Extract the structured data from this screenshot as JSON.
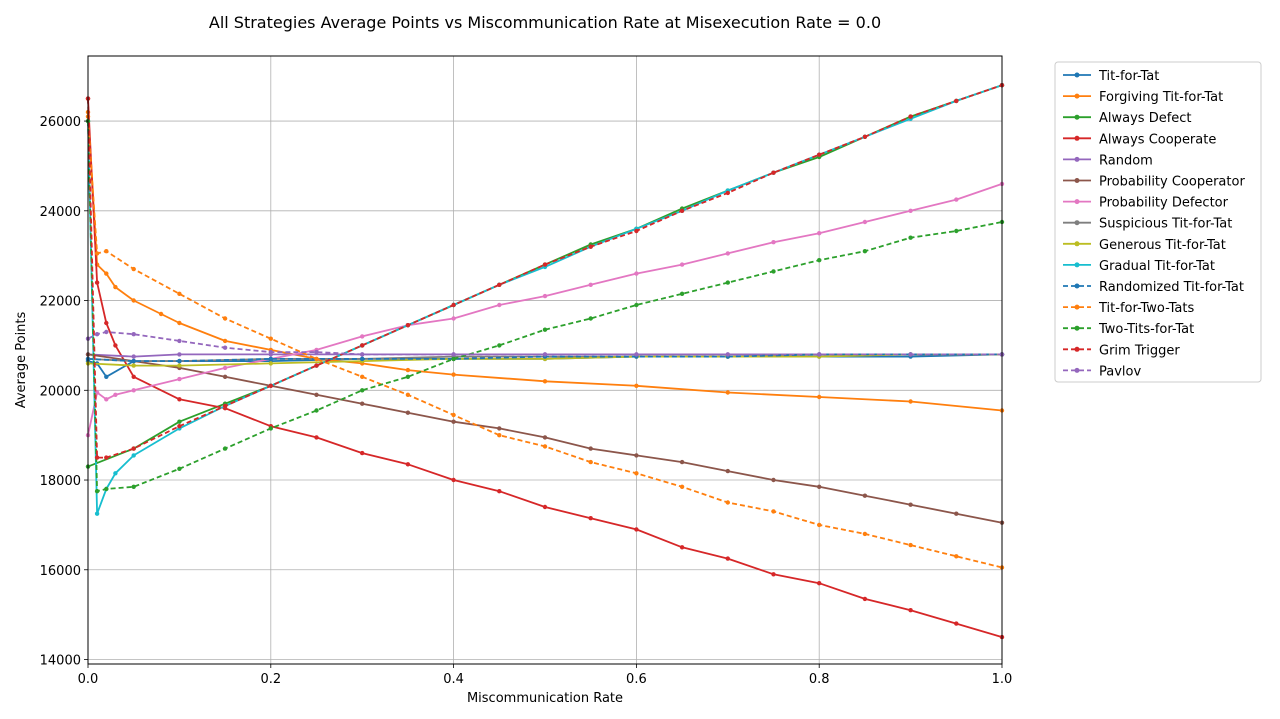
{
  "chart_data": {
    "type": "line",
    "title": "All Strategies Average Points vs Miscommunication Rate at Misexecution Rate = 0.0",
    "xlabel": "Miscommunication Rate",
    "ylabel": "Average Points",
    "xlim": [
      0,
      1
    ],
    "ylim": [
      13900,
      27450
    ],
    "x_ticks": [
      0,
      0.2,
      0.4,
      0.6,
      0.8,
      1.0
    ],
    "x_tick_labels": [
      "0.0",
      "0.2",
      "0.4",
      "0.6",
      "0.8",
      "1.0"
    ],
    "y_ticks": [
      14000,
      16000,
      18000,
      20000,
      22000,
      24000,
      26000
    ],
    "y_tick_labels": [
      "14000",
      "16000",
      "18000",
      "20000",
      "22000",
      "24000",
      "26000"
    ],
    "grid": true,
    "legend_position": "outside-right",
    "series": [
      {
        "name": "Tit-for-Tat",
        "color": "#1f77b4",
        "dashed": false,
        "points": [
          [
            0,
            20650
          ],
          [
            0.01,
            20600
          ],
          [
            0.02,
            20300
          ],
          [
            0.05,
            20650
          ],
          [
            0.1,
            20650
          ],
          [
            0.2,
            20650
          ],
          [
            0.3,
            20700
          ],
          [
            0.4,
            20700
          ],
          [
            0.5,
            20700
          ],
          [
            0.6,
            20750
          ],
          [
            0.7,
            20750
          ],
          [
            0.8,
            20750
          ],
          [
            0.9,
            20750
          ],
          [
            1.0,
            20800
          ]
        ]
      },
      {
        "name": "Forgiving Tit-for-Tat",
        "color": "#ff7f0e",
        "dashed": false,
        "points": [
          [
            0,
            26200
          ],
          [
            0.01,
            22800
          ],
          [
            0.02,
            22600
          ],
          [
            0.03,
            22300
          ],
          [
            0.05,
            22000
          ],
          [
            0.08,
            21700
          ],
          [
            0.1,
            21500
          ],
          [
            0.15,
            21100
          ],
          [
            0.2,
            20900
          ],
          [
            0.25,
            20700
          ],
          [
            0.3,
            20600
          ],
          [
            0.35,
            20450
          ],
          [
            0.4,
            20350
          ],
          [
            0.5,
            20200
          ],
          [
            0.6,
            20100
          ],
          [
            0.7,
            19950
          ],
          [
            0.8,
            19850
          ],
          [
            0.9,
            19750
          ],
          [
            1.0,
            19550
          ]
        ]
      },
      {
        "name": "Always Defect",
        "color": "#2ca02c",
        "dashed": false,
        "points": [
          [
            0,
            18300
          ],
          [
            0.05,
            18700
          ],
          [
            0.1,
            19300
          ],
          [
            0.15,
            19700
          ],
          [
            0.2,
            20100
          ],
          [
            0.25,
            20550
          ],
          [
            0.3,
            21000
          ],
          [
            0.35,
            21450
          ],
          [
            0.4,
            21900
          ],
          [
            0.45,
            22350
          ],
          [
            0.5,
            22800
          ],
          [
            0.55,
            23250
          ],
          [
            0.6,
            23600
          ],
          [
            0.65,
            24050
          ],
          [
            0.7,
            24450
          ],
          [
            0.75,
            24850
          ],
          [
            0.8,
            25200
          ],
          [
            0.85,
            25650
          ],
          [
            0.9,
            26100
          ],
          [
            0.95,
            26450
          ],
          [
            1.0,
            26800
          ]
        ]
      },
      {
        "name": "Always Cooperate",
        "color": "#d62728",
        "dashed": false,
        "points": [
          [
            0,
            26500
          ],
          [
            0.01,
            22400
          ],
          [
            0.02,
            21500
          ],
          [
            0.03,
            21000
          ],
          [
            0.05,
            20300
          ],
          [
            0.1,
            19800
          ],
          [
            0.15,
            19600
          ],
          [
            0.2,
            19200
          ],
          [
            0.25,
            18950
          ],
          [
            0.3,
            18600
          ],
          [
            0.35,
            18350
          ],
          [
            0.4,
            18000
          ],
          [
            0.45,
            17750
          ],
          [
            0.5,
            17400
          ],
          [
            0.55,
            17150
          ],
          [
            0.6,
            16900
          ],
          [
            0.65,
            16500
          ],
          [
            0.7,
            16250
          ],
          [
            0.75,
            15900
          ],
          [
            0.8,
            15700
          ],
          [
            0.85,
            15350
          ],
          [
            0.9,
            15100
          ],
          [
            0.95,
            14800
          ],
          [
            1.0,
            14500
          ]
        ]
      },
      {
        "name": "Random",
        "color": "#9467bd",
        "dashed": false,
        "points": [
          [
            0,
            20800
          ],
          [
            0.05,
            20750
          ],
          [
            0.1,
            20800
          ],
          [
            0.2,
            20800
          ],
          [
            0.3,
            20800
          ],
          [
            0.4,
            20800
          ],
          [
            0.5,
            20800
          ],
          [
            0.6,
            20800
          ],
          [
            0.7,
            20800
          ],
          [
            0.8,
            20800
          ],
          [
            0.9,
            20800
          ],
          [
            1.0,
            20800
          ]
        ]
      },
      {
        "name": "Probability Cooperator",
        "color": "#8c564b",
        "dashed": false,
        "points": [
          [
            0,
            20800
          ],
          [
            0.05,
            20650
          ],
          [
            0.1,
            20500
          ],
          [
            0.15,
            20300
          ],
          [
            0.2,
            20100
          ],
          [
            0.25,
            19900
          ],
          [
            0.3,
            19700
          ],
          [
            0.35,
            19500
          ],
          [
            0.4,
            19300
          ],
          [
            0.45,
            19150
          ],
          [
            0.5,
            18950
          ],
          [
            0.55,
            18700
          ],
          [
            0.6,
            18550
          ],
          [
            0.65,
            18400
          ],
          [
            0.7,
            18200
          ],
          [
            0.75,
            18000
          ],
          [
            0.8,
            17850
          ],
          [
            0.85,
            17650
          ],
          [
            0.9,
            17450
          ],
          [
            0.95,
            17250
          ],
          [
            1.0,
            17050
          ]
        ]
      },
      {
        "name": "Probability Defector",
        "color": "#e377c2",
        "dashed": false,
        "points": [
          [
            0,
            19000
          ],
          [
            0.01,
            19950
          ],
          [
            0.02,
            19800
          ],
          [
            0.03,
            19900
          ],
          [
            0.05,
            20000
          ],
          [
            0.1,
            20250
          ],
          [
            0.15,
            20500
          ],
          [
            0.2,
            20700
          ],
          [
            0.25,
            20900
          ],
          [
            0.3,
            21200
          ],
          [
            0.35,
            21450
          ],
          [
            0.4,
            21600
          ],
          [
            0.45,
            21900
          ],
          [
            0.5,
            22100
          ],
          [
            0.55,
            22350
          ],
          [
            0.6,
            22600
          ],
          [
            0.65,
            22800
          ],
          [
            0.7,
            23050
          ],
          [
            0.75,
            23300
          ],
          [
            0.8,
            23500
          ],
          [
            0.85,
            23750
          ],
          [
            0.9,
            24000
          ],
          [
            0.95,
            24250
          ],
          [
            1.0,
            24600
          ]
        ]
      },
      {
        "name": "Suspicious Tit-for-Tat",
        "color": "#7f7f7f",
        "dashed": false,
        "points": [
          [
            0,
            20700
          ],
          [
            0.05,
            20650
          ],
          [
            0.1,
            20650
          ],
          [
            0.2,
            20700
          ],
          [
            0.3,
            20700
          ],
          [
            0.4,
            20750
          ],
          [
            0.5,
            20750
          ],
          [
            0.6,
            20750
          ],
          [
            0.7,
            20750
          ],
          [
            0.8,
            20800
          ],
          [
            0.9,
            20800
          ],
          [
            1.0,
            20800
          ]
        ]
      },
      {
        "name": "Generous Tit-for-Tat",
        "color": "#bcbd22",
        "dashed": false,
        "points": [
          [
            0,
            20600
          ],
          [
            0.05,
            20550
          ],
          [
            0.1,
            20550
          ],
          [
            0.2,
            20600
          ],
          [
            0.3,
            20650
          ],
          [
            0.4,
            20700
          ],
          [
            0.5,
            20700
          ],
          [
            0.6,
            20750
          ],
          [
            0.7,
            20750
          ],
          [
            0.8,
            20750
          ],
          [
            0.9,
            20800
          ],
          [
            1.0,
            20800
          ]
        ]
      },
      {
        "name": "Gradual Tit-for-Tat",
        "color": "#17becf",
        "dashed": false,
        "points": [
          [
            0,
            26000
          ],
          [
            0.01,
            17250
          ],
          [
            0.02,
            17800
          ],
          [
            0.03,
            18150
          ],
          [
            0.05,
            18550
          ],
          [
            0.1,
            19150
          ],
          [
            0.15,
            19650
          ],
          [
            0.2,
            20100
          ],
          [
            0.25,
            20550
          ],
          [
            0.3,
            21000
          ],
          [
            0.35,
            21450
          ],
          [
            0.4,
            21900
          ],
          [
            0.45,
            22350
          ],
          [
            0.5,
            22750
          ],
          [
            0.55,
            23200
          ],
          [
            0.6,
            23600
          ],
          [
            0.65,
            24000
          ],
          [
            0.7,
            24450
          ],
          [
            0.75,
            24850
          ],
          [
            0.8,
            25250
          ],
          [
            0.85,
            25650
          ],
          [
            0.9,
            26050
          ],
          [
            0.95,
            26450
          ],
          [
            1.0,
            26800
          ]
        ]
      },
      {
        "name": "Randomized Tit-for-Tat",
        "color": "#1f77b4",
        "dashed": true,
        "points": [
          [
            0,
            20700
          ],
          [
            0.05,
            20650
          ],
          [
            0.1,
            20650
          ],
          [
            0.2,
            20700
          ],
          [
            0.3,
            20700
          ],
          [
            0.4,
            20700
          ],
          [
            0.5,
            20750
          ],
          [
            0.6,
            20750
          ],
          [
            0.7,
            20750
          ],
          [
            0.8,
            20800
          ],
          [
            0.9,
            20800
          ],
          [
            1.0,
            20800
          ]
        ]
      },
      {
        "name": "Tit-for-Two-Tats",
        "color": "#ff7f0e",
        "dashed": true,
        "points": [
          [
            0,
            26100
          ],
          [
            0.01,
            23050
          ],
          [
            0.02,
            23100
          ],
          [
            0.05,
            22700
          ],
          [
            0.1,
            22150
          ],
          [
            0.15,
            21600
          ],
          [
            0.2,
            21150
          ],
          [
            0.25,
            20700
          ],
          [
            0.3,
            20300
          ],
          [
            0.35,
            19900
          ],
          [
            0.4,
            19450
          ],
          [
            0.45,
            19000
          ],
          [
            0.5,
            18750
          ],
          [
            0.55,
            18400
          ],
          [
            0.6,
            18150
          ],
          [
            0.65,
            17850
          ],
          [
            0.7,
            17500
          ],
          [
            0.75,
            17300
          ],
          [
            0.8,
            17000
          ],
          [
            0.85,
            16800
          ],
          [
            0.9,
            16550
          ],
          [
            0.95,
            16300
          ],
          [
            1.0,
            16050
          ]
        ]
      },
      {
        "name": "Two-Tits-for-Tat",
        "color": "#2ca02c",
        "dashed": true,
        "points": [
          [
            0,
            26000
          ],
          [
            0.01,
            17750
          ],
          [
            0.02,
            17800
          ],
          [
            0.05,
            17850
          ],
          [
            0.1,
            18250
          ],
          [
            0.15,
            18700
          ],
          [
            0.2,
            19150
          ],
          [
            0.25,
            19550
          ],
          [
            0.3,
            20000
          ],
          [
            0.35,
            20300
          ],
          [
            0.4,
            20700
          ],
          [
            0.45,
            21000
          ],
          [
            0.5,
            21350
          ],
          [
            0.55,
            21600
          ],
          [
            0.6,
            21900
          ],
          [
            0.65,
            22150
          ],
          [
            0.7,
            22400
          ],
          [
            0.75,
            22650
          ],
          [
            0.8,
            22900
          ],
          [
            0.85,
            23100
          ],
          [
            0.9,
            23400
          ],
          [
            0.95,
            23550
          ],
          [
            1.0,
            23750
          ]
        ]
      },
      {
        "name": "Grim Trigger",
        "color": "#d62728",
        "dashed": true,
        "points": [
          [
            0,
            26500
          ],
          [
            0.01,
            18500
          ],
          [
            0.02,
            18500
          ],
          [
            0.05,
            18700
          ],
          [
            0.1,
            19200
          ],
          [
            0.15,
            19650
          ],
          [
            0.2,
            20100
          ],
          [
            0.25,
            20550
          ],
          [
            0.3,
            21000
          ],
          [
            0.35,
            21450
          ],
          [
            0.4,
            21900
          ],
          [
            0.45,
            22350
          ],
          [
            0.5,
            22800
          ],
          [
            0.55,
            23200
          ],
          [
            0.6,
            23550
          ],
          [
            0.65,
            24000
          ],
          [
            0.7,
            24400
          ],
          [
            0.75,
            24850
          ],
          [
            0.8,
            25250
          ],
          [
            0.85,
            25650
          ],
          [
            0.9,
            26100
          ],
          [
            0.95,
            26450
          ],
          [
            1.0,
            26800
          ]
        ]
      },
      {
        "name": "Pavlov",
        "color": "#9467bd",
        "dashed": true,
        "points": [
          [
            0,
            21150
          ],
          [
            0.01,
            21250
          ],
          [
            0.02,
            21300
          ],
          [
            0.05,
            21250
          ],
          [
            0.1,
            21100
          ],
          [
            0.15,
            20950
          ],
          [
            0.2,
            20850
          ],
          [
            0.25,
            20850
          ],
          [
            0.3,
            20800
          ],
          [
            0.4,
            20800
          ],
          [
            0.5,
            20800
          ],
          [
            0.6,
            20800
          ],
          [
            0.7,
            20800
          ],
          [
            0.8,
            20800
          ],
          [
            0.9,
            20800
          ],
          [
            1.0,
            20800
          ]
        ]
      }
    ]
  }
}
